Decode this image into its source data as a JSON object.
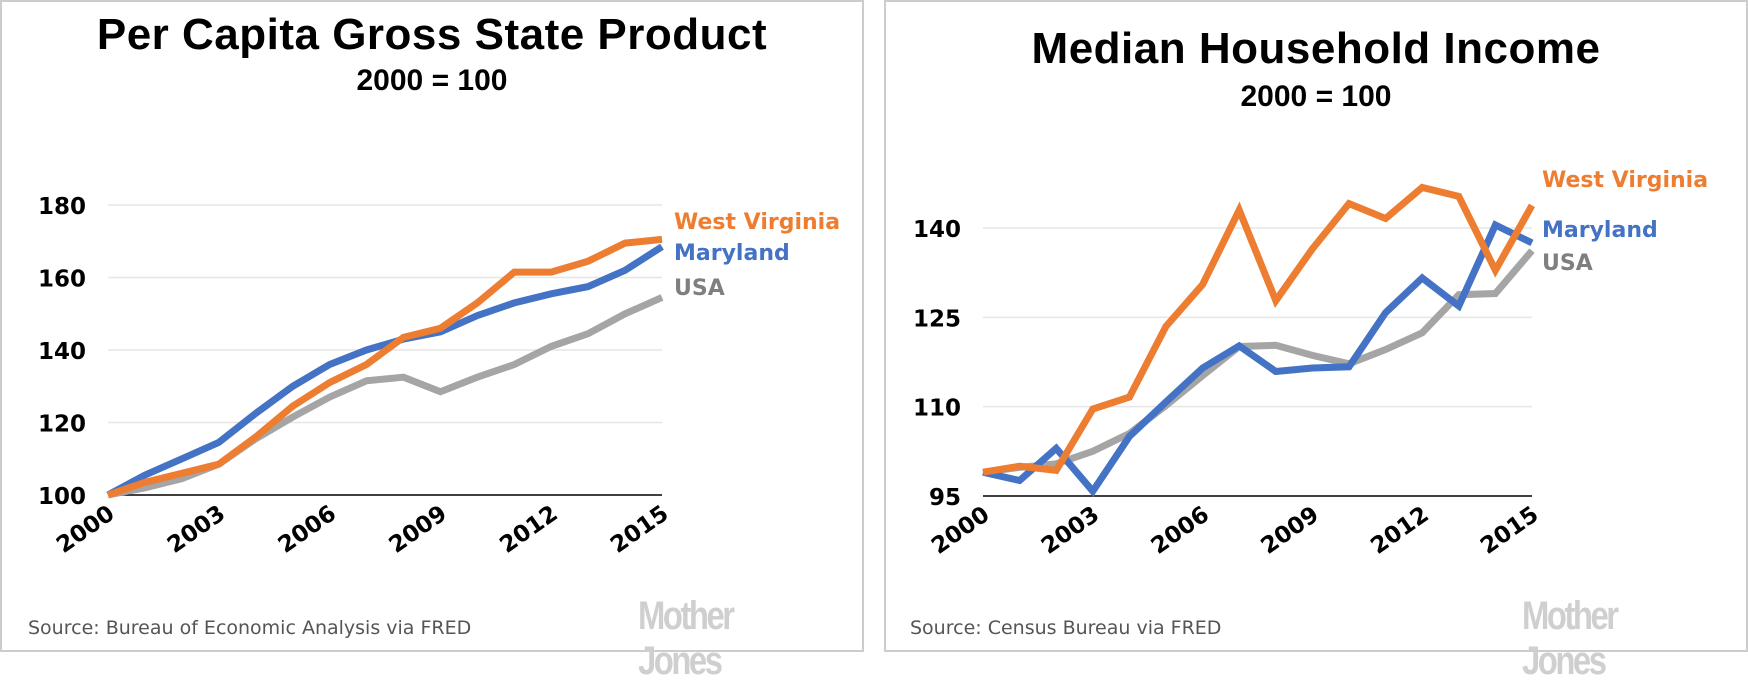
{
  "colors": {
    "west_virginia": "#ED7D31",
    "maryland": "#4472C4",
    "usa": "#A5A5A5",
    "usa_label": "#7F7F7F",
    "gridline": "#e6e6e6",
    "axis": "#000000",
    "brand": "#cfcfcf"
  },
  "brand": "Mother Jones",
  "chart_data": [
    {
      "type": "line",
      "title": "Per Capita Gross State Product",
      "subtitle": "2000 = 100",
      "source": "Source: Bureau of Economic Analysis via FRED",
      "xlabel": "",
      "ylabel": "",
      "x": [
        2000,
        2001,
        2002,
        2003,
        2004,
        2005,
        2006,
        2007,
        2008,
        2009,
        2010,
        2011,
        2012,
        2013,
        2014,
        2015
      ],
      "x_tick_labels": [
        "2000",
        "2003",
        "2006",
        "2009",
        "2012",
        "2015"
      ],
      "y_tick_labels": [
        "100",
        "120",
        "140",
        "160",
        "180"
      ],
      "y_ticks": [
        100,
        120,
        140,
        160,
        180
      ],
      "ylim": [
        100,
        180
      ],
      "grid": true,
      "legend_placement": "right (inline labels)",
      "series": [
        {
          "name": "West Virginia",
          "color_key": "west_virginia",
          "label_color_key": "west_virginia",
          "values": [
            100,
            103.5,
            106,
            108.5,
            116,
            124.5,
            131,
            136,
            143.5,
            146,
            153,
            161.5,
            161.5,
            164.5,
            169.5,
            170.5
          ]
        },
        {
          "name": "Maryland",
          "color_key": "maryland",
          "label_color_key": "maryland",
          "values": [
            100,
            105.5,
            110,
            114.5,
            122.5,
            130,
            136,
            140,
            143,
            145,
            149.5,
            153,
            155.5,
            157.5,
            162,
            168.5
          ]
        },
        {
          "name": "USA",
          "color_key": "usa",
          "label_color_key": "usa_label",
          "values": [
            100,
            102,
            104.5,
            108.5,
            115.5,
            121.5,
            127,
            131.5,
            132.5,
            128.5,
            132.5,
            136,
            141,
            144.5,
            150,
            154.5
          ]
        }
      ]
    },
    {
      "type": "line",
      "title": "Median Household Income",
      "subtitle": "2000 = 100",
      "source": "Source: Census Bureau via FRED",
      "xlabel": "",
      "ylabel": "",
      "x": [
        2000,
        2001,
        2002,
        2003,
        2004,
        2005,
        2006,
        2007,
        2008,
        2009,
        2010,
        2011,
        2012,
        2013,
        2014,
        2015
      ],
      "x_tick_labels": [
        "2000",
        "2003",
        "2006",
        "2009",
        "2012",
        "2015"
      ],
      "y_tick_labels": [
        "95",
        "110",
        "125",
        "140"
      ],
      "y_ticks": [
        95,
        110,
        125,
        140
      ],
      "ylim": [
        95,
        150
      ],
      "grid": true,
      "legend_placement": "right (inline labels)",
      "series": [
        {
          "name": "West Virginia",
          "color_key": "west_virginia",
          "label_color_key": "west_virginia",
          "values": [
            99,
            100,
            99.3,
            109.6,
            111.6,
            123.5,
            130.5,
            143,
            127.8,
            136.5,
            144.1,
            141.6,
            146.8,
            145.3,
            132.9,
            143.8
          ]
        },
        {
          "name": "Maryland",
          "color_key": "maryland",
          "label_color_key": "maryland",
          "values": [
            99,
            97.6,
            103,
            95.8,
            105,
            110.8,
            116.5,
            120.2,
            115.9,
            116.5,
            116.7,
            125.8,
            131.6,
            126.9,
            140.5,
            137.5
          ]
        },
        {
          "name": "USA",
          "color_key": "usa",
          "label_color_key": "usa_label",
          "values": [
            99,
            99.8,
            100.4,
            102.5,
            105.5,
            110.2,
            115.2,
            120.1,
            120.3,
            118.6,
            117.2,
            119.6,
            122.4,
            128.8,
            129,
            136.2
          ]
        }
      ]
    }
  ]
}
